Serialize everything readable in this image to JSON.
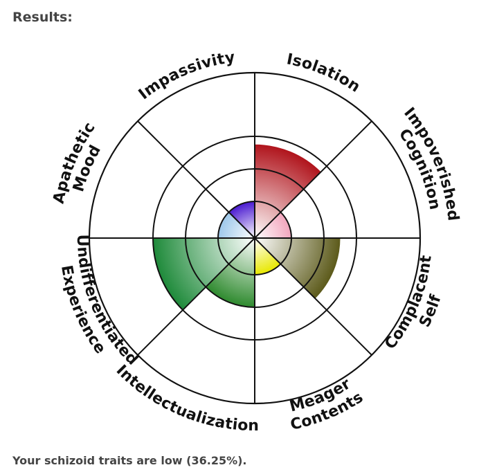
{
  "header": {
    "title": "Results:"
  },
  "summary": {
    "text": "Your schizoid traits are low (36.25%)."
  },
  "chart_data": {
    "type": "radial-sector",
    "levels": 4,
    "max": 4,
    "grid": true,
    "categories": [
      {
        "label": [
          "Isolation"
        ],
        "value": 2.75,
        "color": "#b0141c"
      },
      {
        "label": [
          "Impoverished",
          "Cognition"
        ],
        "value": 1,
        "color": "#f2a6bd"
      },
      {
        "label": [
          "Complacent",
          "Self"
        ],
        "value": 2.5,
        "color": "#5c5a1a"
      },
      {
        "label": [
          "Meager",
          "Contents"
        ],
        "value": 1,
        "color": "#e8e800"
      },
      {
        "label": [
          "Intellectualization"
        ],
        "value": 2,
        "color": "#2e8a2e"
      },
      {
        "label": [
          "Undifferentiated",
          "Experience"
        ],
        "value": 3,
        "color": "#1e8a3a"
      },
      {
        "label": [
          "Apathetic",
          "Mood"
        ],
        "value": 1,
        "color": "#9ec8ea"
      },
      {
        "label": [
          "Impassivity"
        ],
        "value": 1,
        "color": "#4a1ad0"
      }
    ]
  }
}
